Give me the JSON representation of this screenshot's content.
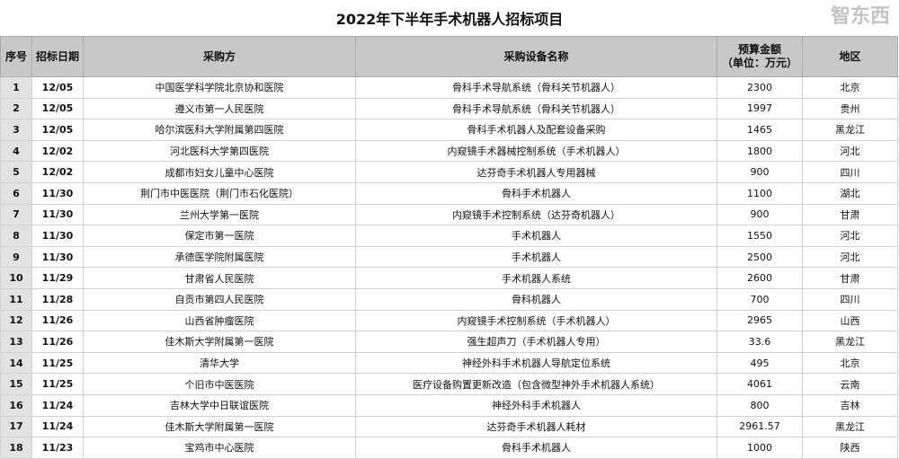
{
  "title": "2022年下半年手术机器人招标项目",
  "headers": [
    "序号",
    "招标日期",
    "采购方",
    "采购设备名称",
    "预算金额\n（单位：万元）",
    "地区"
  ],
  "rows": [
    [
      "1",
      "12/05",
      "中国医学科学院北京协和医院",
      "骨科手术导航系统（骨科关节机器人）",
      "2300",
      "北京"
    ],
    [
      "2",
      "12/05",
      "遵义市第一人民医院",
      "骨科手术导航系统（骨科关节机器人）",
      "1997",
      "贵州"
    ],
    [
      "3",
      "12/05",
      "哈尔滨医科大学附属第四医院",
      "骨科手术机器人及配套设备采购",
      "1465",
      "黑龙江"
    ],
    [
      "4",
      "12/02",
      "河北医科大学第四医院",
      "内窥镜手术器械控制系统（手术机器人）",
      "1800",
      "河北"
    ],
    [
      "5",
      "12/02",
      "成都市妇女儿童中心医院",
      "达芬奇手术机器人专用器械",
      "900",
      "四川"
    ],
    [
      "6",
      "11/30",
      "荆门市中医医院（荆门市石化医院）",
      "骨科手术机器人",
      "1100",
      "湖北"
    ],
    [
      "7",
      "11/30",
      "兰州大学第一医院",
      "内窥镜手术控制系统（达芬奇机器人）",
      "900",
      "甘肃"
    ],
    [
      "8",
      "11/30",
      "保定市第一医院",
      "手术机器人",
      "1550",
      "河北"
    ],
    [
      "9",
      "11/30",
      "承德医学院附属医院",
      "手术机器人",
      "2500",
      "河北"
    ],
    [
      "10",
      "11/29",
      "甘肃省人民医院",
      "手术机器人系统",
      "2600",
      "甘肃"
    ],
    [
      "11",
      "11/28",
      "自贡市第四人民医院",
      "骨科机器人",
      "700",
      "四川"
    ],
    [
      "12",
      "11/26",
      "山西省肿瘤医院",
      "内窥镜手术控制系统（手术机器人）",
      "2965",
      "山西"
    ],
    [
      "13",
      "11/26",
      "佳木斯大学附属第一医院",
      "强生超声刀（手术机器人专用）",
      "33.6",
      "黑龙江"
    ],
    [
      "14",
      "11/25",
      "清华大学",
      "神经外科手术机器人导航定位系统",
      "495",
      "北京"
    ],
    [
      "15",
      "11/25",
      "个旧市中医医院",
      "医疗设备购置更新改造（包含微型神外手术机器人系统）",
      "4061",
      "云南"
    ],
    [
      "16",
      "11/24",
      "吉林大学中日联谊医院",
      "神经外科手术机器人",
      "800",
      "吉林"
    ],
    [
      "17",
      "11/24",
      "佳木斯大学附属第一医院",
      "达芬奇手术机器人耗材",
      "2961.57",
      "黑龙江"
    ],
    [
      "18",
      "11/23",
      "宝鸡市中心医院",
      "骨科手术机器人",
      "1000",
      "陕西"
    ]
  ],
  "watermark": "智东西"
}
